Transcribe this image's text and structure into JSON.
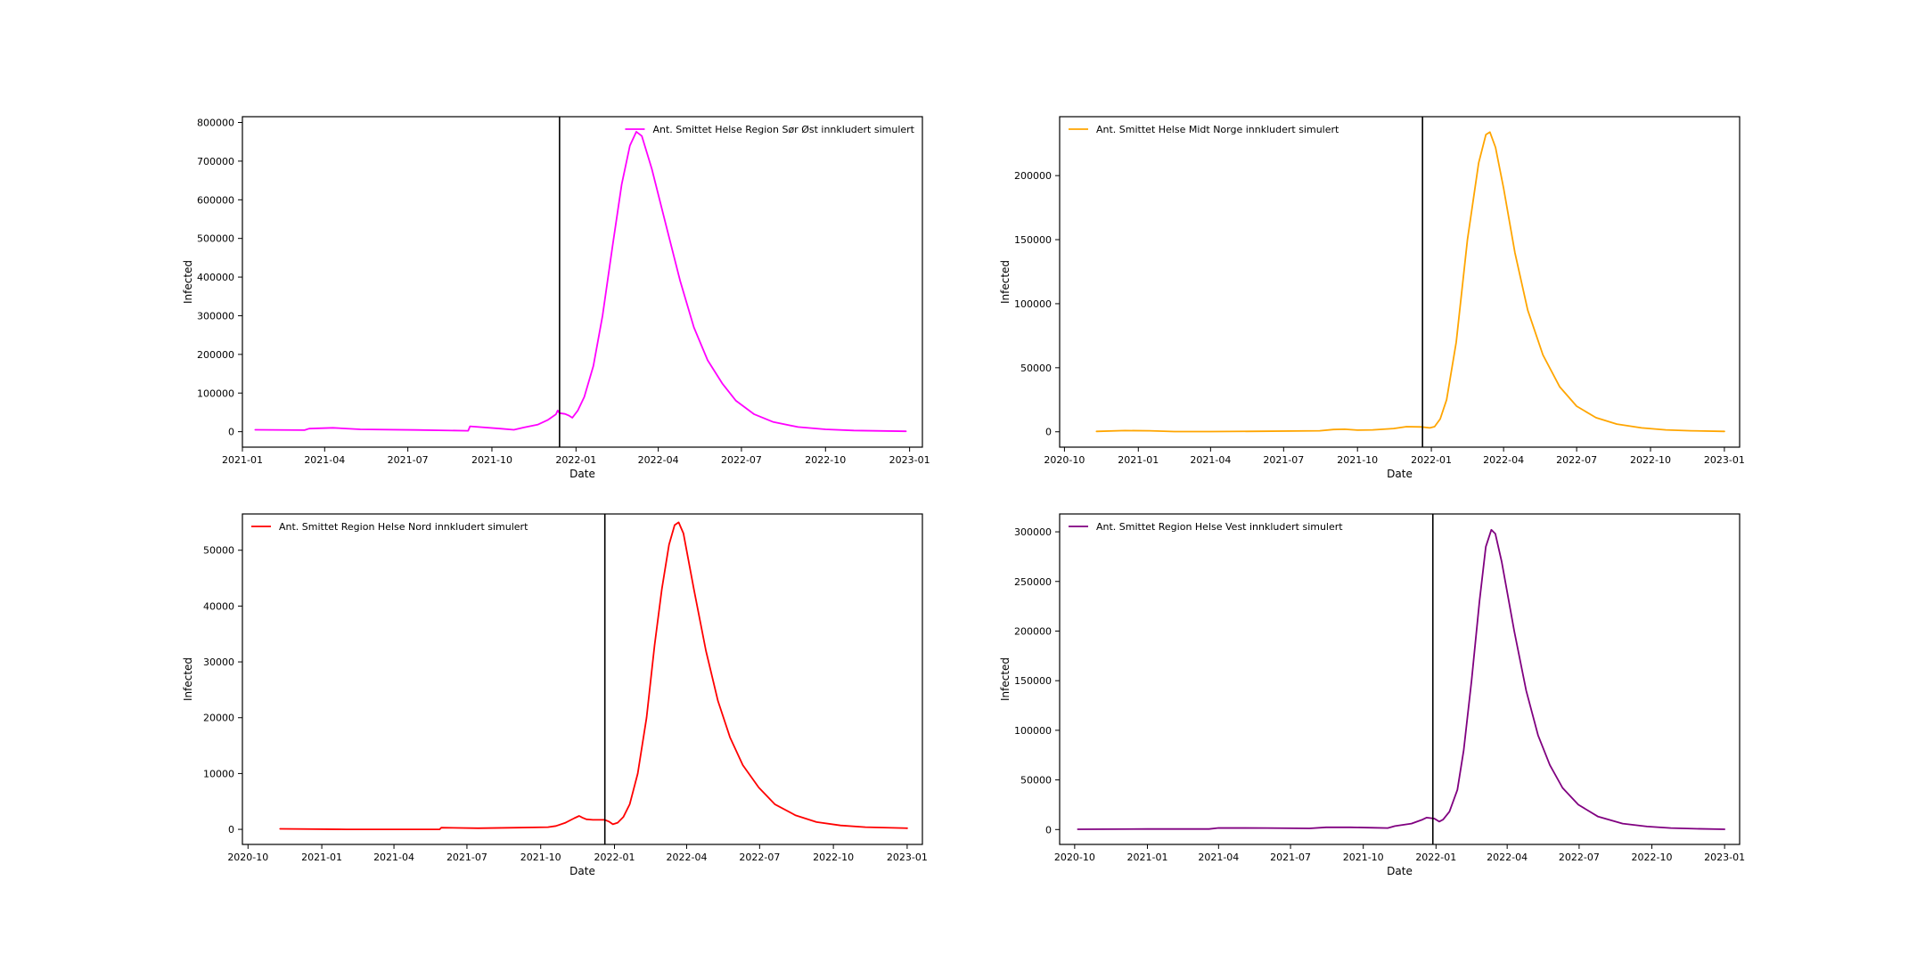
{
  "figure": {
    "background": "#ffffff",
    "grid": false
  },
  "chart_data": [
    {
      "type": "line",
      "panel": "top-left",
      "xlabel": "Date",
      "ylabel": "Infected",
      "xlim": [
        "2021-01-01",
        "2023-01-15"
      ],
      "ylim": [
        -40000,
        815000
      ],
      "xticks": [
        "2021-01",
        "2021-04",
        "2021-07",
        "2021-10",
        "2022-01",
        "2022-04",
        "2022-07",
        "2022-10",
        "2023-01"
      ],
      "yticks": [
        0,
        100000,
        200000,
        300000,
        400000,
        500000,
        600000,
        700000,
        800000
      ],
      "vline": "2021-12-14",
      "legend_position": "upper right",
      "series": [
        {
          "name": "Ant. Smittet Helse Region Sør Øst innkludert simulert",
          "color": "#ff00ff",
          "points": [
            [
              "2021-01-15",
              5000
            ],
            [
              "2021-03-10",
              4000
            ],
            [
              "2021-03-15",
              8000
            ],
            [
              "2021-04-10",
              10000
            ],
            [
              "2021-05-10",
              6000
            ],
            [
              "2021-07-10",
              4500
            ],
            [
              "2021-09-05",
              2500
            ],
            [
              "2021-09-07",
              14000
            ],
            [
              "2021-10-10",
              8000
            ],
            [
              "2021-10-25",
              5000
            ],
            [
              "2021-11-05",
              11000
            ],
            [
              "2021-11-20",
              18000
            ],
            [
              "2021-12-01",
              30000
            ],
            [
              "2021-12-10",
              45000
            ],
            [
              "2021-12-12",
              55000
            ],
            [
              "2021-12-14",
              48000
            ],
            [
              "2021-12-20",
              46000
            ],
            [
              "2021-12-24",
              42000
            ],
            [
              "2021-12-28",
              36000
            ],
            [
              "2022-01-03",
              55000
            ],
            [
              "2022-01-10",
              90000
            ],
            [
              "2022-01-20",
              170000
            ],
            [
              "2022-01-30",
              300000
            ],
            [
              "2022-02-10",
              480000
            ],
            [
              "2022-02-20",
              640000
            ],
            [
              "2022-03-01",
              740000
            ],
            [
              "2022-03-08",
              776000
            ],
            [
              "2022-03-14",
              765000
            ],
            [
              "2022-03-25",
              680000
            ],
            [
              "2022-04-10",
              530000
            ],
            [
              "2022-04-25",
              390000
            ],
            [
              "2022-05-10",
              270000
            ],
            [
              "2022-05-25",
              185000
            ],
            [
              "2022-06-10",
              125000
            ],
            [
              "2022-06-25",
              80000
            ],
            [
              "2022-07-15",
              45000
            ],
            [
              "2022-08-05",
              25000
            ],
            [
              "2022-09-01",
              12000
            ],
            [
              "2022-10-01",
              6000
            ],
            [
              "2022-11-01",
              3000
            ],
            [
              "2022-12-28",
              1000
            ]
          ]
        }
      ]
    },
    {
      "type": "line",
      "panel": "top-right",
      "xlabel": "Date",
      "ylabel": "Infected",
      "xlim": [
        "2020-09-25",
        "2023-01-20"
      ],
      "ylim": [
        -12000,
        246000
      ],
      "xticks": [
        "2020-10",
        "2021-01",
        "2021-04",
        "2021-07",
        "2021-10",
        "2022-01",
        "2022-04",
        "2022-07",
        "2022-10",
        "2023-01"
      ],
      "yticks": [
        0,
        50000,
        100000,
        150000,
        200000
      ],
      "vline": "2021-12-21",
      "legend_position": "upper left",
      "series": [
        {
          "name": "Ant. Smittet Helse Midt Norge innkludert simulert",
          "color": "#ffa500",
          "points": [
            [
              "2020-11-10",
              300
            ],
            [
              "2020-12-15",
              900
            ],
            [
              "2021-01-15",
              800
            ],
            [
              "2021-02-15",
              200
            ],
            [
              "2021-04-01",
              200
            ],
            [
              "2021-06-01",
              400
            ],
            [
              "2021-08-15",
              800
            ],
            [
              "2021-09-01",
              1800
            ],
            [
              "2021-09-15",
              2000
            ],
            [
              "2021-10-01",
              1300
            ],
            [
              "2021-10-20",
              1500
            ],
            [
              "2021-11-15",
              2500
            ],
            [
              "2021-12-01",
              4000
            ],
            [
              "2021-12-20",
              3800
            ],
            [
              "2021-12-30",
              3000
            ],
            [
              "2022-01-05",
              4000
            ],
            [
              "2022-01-12",
              10000
            ],
            [
              "2022-01-20",
              25000
            ],
            [
              "2022-02-01",
              70000
            ],
            [
              "2022-02-15",
              150000
            ],
            [
              "2022-03-01",
              210000
            ],
            [
              "2022-03-10",
              232000
            ],
            [
              "2022-03-15",
              234000
            ],
            [
              "2022-03-22",
              222000
            ],
            [
              "2022-04-01",
              190000
            ],
            [
              "2022-04-15",
              140000
            ],
            [
              "2022-05-01",
              95000
            ],
            [
              "2022-05-20",
              60000
            ],
            [
              "2022-06-10",
              35000
            ],
            [
              "2022-07-01",
              20000
            ],
            [
              "2022-07-25",
              11000
            ],
            [
              "2022-08-20",
              6000
            ],
            [
              "2022-09-20",
              3000
            ],
            [
              "2022-10-20",
              1500
            ],
            [
              "2022-11-20",
              800
            ],
            [
              "2023-01-01",
              300
            ]
          ]
        }
      ]
    },
    {
      "type": "line",
      "panel": "bottom-left",
      "xlabel": "Date",
      "ylabel": "Infected",
      "xlim": [
        "2020-09-24",
        "2023-01-20"
      ],
      "ylim": [
        -2700,
        56500
      ],
      "xticks": [
        "2020-10",
        "2021-01",
        "2021-04",
        "2021-07",
        "2021-10",
        "2022-01",
        "2022-04",
        "2022-07",
        "2022-10",
        "2023-01"
      ],
      "yticks": [
        0,
        10000,
        20000,
        30000,
        40000,
        50000
      ],
      "vline": "2021-12-20",
      "legend_position": "upper left",
      "series": [
        {
          "name": "Ant. Smittet Region Helse Nord innkludert simulert",
          "color": "#ff0000",
          "points": [
            [
              "2020-11-10",
              100
            ],
            [
              "2021-02-01",
              0
            ],
            [
              "2021-05-28",
              0
            ],
            [
              "2021-05-30",
              300
            ],
            [
              "2021-07-15",
              200
            ],
            [
              "2021-09-01",
              300
            ],
            [
              "2021-10-10",
              400
            ],
            [
              "2021-10-20",
              600
            ],
            [
              "2021-11-01",
              1200
            ],
            [
              "2021-11-12",
              2000
            ],
            [
              "2021-11-18",
              2400
            ],
            [
              "2021-11-22",
              2100
            ],
            [
              "2021-11-27",
              1800
            ],
            [
              "2021-12-05",
              1700
            ],
            [
              "2021-12-20",
              1700
            ],
            [
              "2021-12-25",
              1400
            ],
            [
              "2021-12-30",
              900
            ],
            [
              "2022-01-05",
              1200
            ],
            [
              "2022-01-12",
              2200
            ],
            [
              "2022-01-20",
              4500
            ],
            [
              "2022-01-30",
              10000
            ],
            [
              "2022-02-10",
              20000
            ],
            [
              "2022-02-20",
              33000
            ],
            [
              "2022-03-01",
              43000
            ],
            [
              "2022-03-10",
              51000
            ],
            [
              "2022-03-17",
              54500
            ],
            [
              "2022-03-22",
              55000
            ],
            [
              "2022-03-28",
              53000
            ],
            [
              "2022-04-10",
              43000
            ],
            [
              "2022-04-25",
              32000
            ],
            [
              "2022-05-10",
              23000
            ],
            [
              "2022-05-25",
              16500
            ],
            [
              "2022-06-10",
              11500
            ],
            [
              "2022-06-30",
              7500
            ],
            [
              "2022-07-20",
              4500
            ],
            [
              "2022-08-15",
              2500
            ],
            [
              "2022-09-10",
              1300
            ],
            [
              "2022-10-10",
              700
            ],
            [
              "2022-11-10",
              400
            ],
            [
              "2023-01-01",
              200
            ]
          ]
        }
      ]
    },
    {
      "type": "line",
      "panel": "bottom-right",
      "xlabel": "Date",
      "ylabel": "Infected",
      "xlim": [
        "2020-09-12",
        "2023-01-20"
      ],
      "ylim": [
        -15000,
        318000
      ],
      "xticks": [
        "2020-10",
        "2021-01",
        "2021-04",
        "2021-07",
        "2021-10",
        "2022-01",
        "2022-04",
        "2022-07",
        "2022-10",
        "2023-01"
      ],
      "yticks": [
        0,
        50000,
        100000,
        150000,
        200000,
        250000,
        300000
      ],
      "vline": "2021-12-28",
      "legend_position": "upper left",
      "series": [
        {
          "name": "Ant. Smittet Region Helse Vest innkludert simulert",
          "color": "#800080",
          "points": [
            [
              "2020-10-05",
              300
            ],
            [
              "2021-01-01",
              500
            ],
            [
              "2021-03-20",
              500
            ],
            [
              "2021-04-01",
              1600
            ],
            [
              "2021-06-01",
              1500
            ],
            [
              "2021-07-25",
              1200
            ],
            [
              "2021-08-15",
              2200
            ],
            [
              "2021-09-15",
              2200
            ],
            [
              "2021-10-15",
              1800
            ],
            [
              "2021-11-01",
              1500
            ],
            [
              "2021-11-10",
              3500
            ],
            [
              "2021-12-01",
              6000
            ],
            [
              "2021-12-15",
              10000
            ],
            [
              "2021-12-20",
              12000
            ],
            [
              "2021-12-30",
              11000
            ],
            [
              "2022-01-05",
              8000
            ],
            [
              "2022-01-10",
              10000
            ],
            [
              "2022-01-18",
              18000
            ],
            [
              "2022-01-28",
              40000
            ],
            [
              "2022-02-05",
              80000
            ],
            [
              "2022-02-15",
              150000
            ],
            [
              "2022-02-25",
              230000
            ],
            [
              "2022-03-05",
              285000
            ],
            [
              "2022-03-12",
              302000
            ],
            [
              "2022-03-17",
              298000
            ],
            [
              "2022-03-25",
              270000
            ],
            [
              "2022-04-10",
              200000
            ],
            [
              "2022-04-25",
              140000
            ],
            [
              "2022-05-10",
              95000
            ],
            [
              "2022-05-25",
              65000
            ],
            [
              "2022-06-10",
              42000
            ],
            [
              "2022-06-30",
              25000
            ],
            [
              "2022-07-25",
              13000
            ],
            [
              "2022-08-25",
              6000
            ],
            [
              "2022-09-25",
              3000
            ],
            [
              "2022-10-25",
              1500
            ],
            [
              "2022-11-25",
              800
            ],
            [
              "2023-01-01",
              300
            ]
          ]
        }
      ]
    }
  ]
}
